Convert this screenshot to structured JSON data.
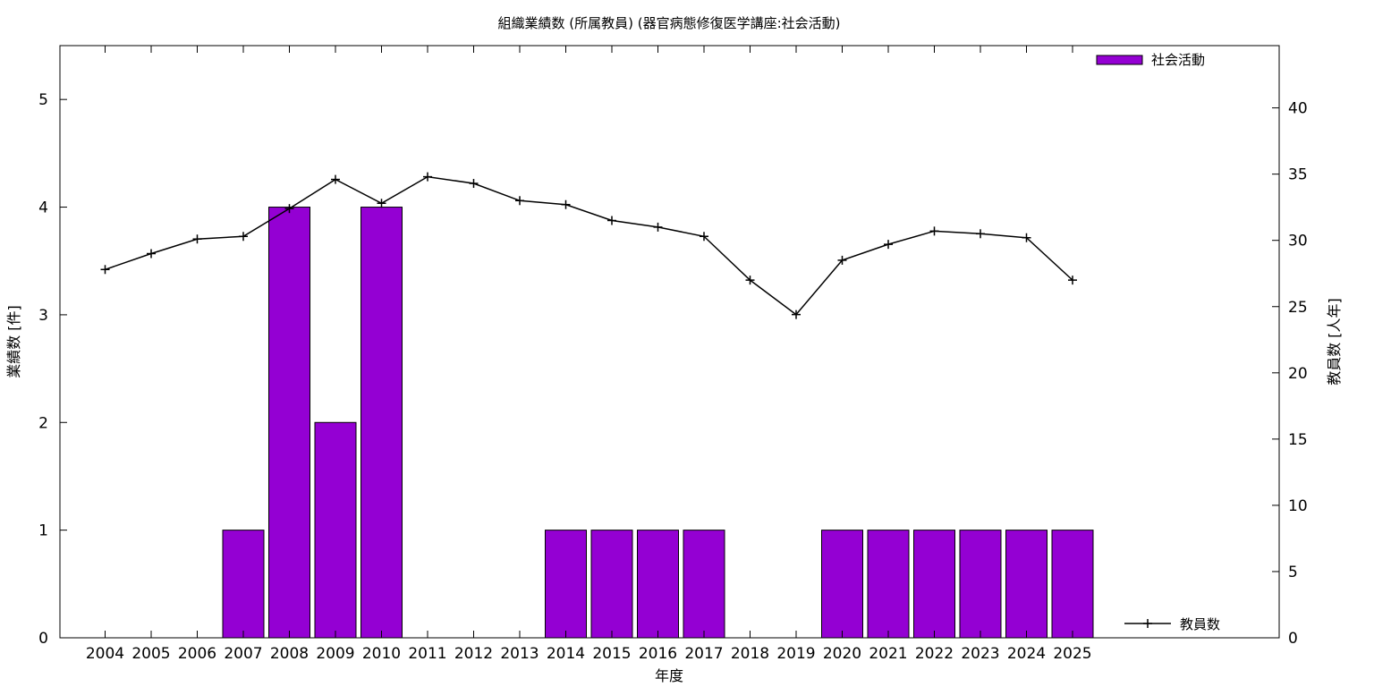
{
  "chart_data": {
    "type": "bar",
    "title": "組織業績数 (所属教員) (器官病態修復医学講座:社会活動)",
    "xlabel": "年度",
    "ylabel": "業績数 [件]",
    "y2label": "教員数 [人年]",
    "categories": [
      "2004",
      "2005",
      "2006",
      "2007",
      "2008",
      "2009",
      "2010",
      "2011",
      "2012",
      "2013",
      "2014",
      "2015",
      "2016",
      "2017",
      "2018",
      "2019",
      "2020",
      "2021",
      "2022",
      "2023",
      "2024",
      "2025"
    ],
    "ylim": [
      0,
      5.5
    ],
    "yticks": [
      0,
      1,
      2,
      3,
      4,
      5
    ],
    "y2lim": [
      0,
      44.7
    ],
    "y2ticks": [
      0,
      5,
      10,
      15,
      20,
      25,
      30,
      35,
      40
    ],
    "grid": false,
    "series": [
      {
        "name": "社会活動",
        "type": "bar",
        "axis": "left",
        "color": "#9400D3",
        "values": [
          0,
          0,
          0,
          1,
          4,
          2,
          4,
          0,
          0,
          0,
          1,
          1,
          1,
          1,
          0,
          0,
          1,
          1,
          1,
          1,
          1,
          1
        ],
        "legend_position": "top-right"
      },
      {
        "name": "教員数",
        "type": "line",
        "axis": "right",
        "color": "#000000",
        "values": [
          27.8,
          29.0,
          30.1,
          30.3,
          32.4,
          34.6,
          32.8,
          34.8,
          34.3,
          33.0,
          32.7,
          31.5,
          31.0,
          30.3,
          27.0,
          24.4,
          28.5,
          29.7,
          30.7,
          30.5,
          30.2,
          27.0
        ],
        "legend_position": "bottom-right"
      }
    ]
  }
}
